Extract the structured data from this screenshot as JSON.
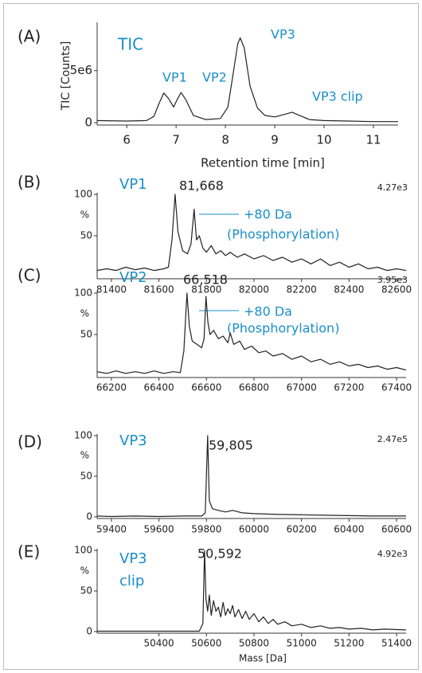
{
  "chart_data": [
    {
      "type": "line",
      "panel": "(A)",
      "title_lines": [
        "TIC"
      ],
      "ylabel": "TIC [Counts]",
      "xlabel": "Retention time [min]",
      "annotations": [
        "VP1",
        "VP2",
        "VP3",
        "VP3 clip"
      ],
      "color": "#222222",
      "x": [
        5.4,
        6.0,
        6.4,
        6.55,
        6.65,
        6.75,
        6.85,
        6.95,
        7.02,
        7.1,
        7.2,
        7.35,
        7.6,
        7.9,
        8.05,
        8.15,
        8.25,
        8.3,
        8.38,
        8.5,
        8.65,
        8.8,
        9.0,
        9.2,
        9.35,
        9.5,
        9.7,
        10.0,
        10.5,
        11.0,
        11.5
      ],
      "values": [
        200000,
        150000,
        200000,
        600000,
        1800000,
        2850000,
        2300000,
        1500000,
        2200000,
        2900000,
        2200000,
        700000,
        300000,
        400000,
        1500000,
        4500000,
        7600000,
        8150000,
        7200000,
        3500000,
        1400000,
        700000,
        550000,
        800000,
        1000000,
        700000,
        300000,
        200000,
        150000,
        100000,
        100000
      ],
      "xlim": [
        5.4,
        11.5
      ],
      "ylim": [
        -230000,
        9500000
      ],
      "xticks": [
        6,
        7,
        8,
        9,
        10,
        11
      ],
      "yticks": [
        0,
        {
          "value": 5000000,
          "label": "5e6"
        }
      ]
    },
    {
      "type": "line",
      "panel": "(B)",
      "title_lines": [
        "VP1"
      ],
      "y_unit": "%",
      "intensity_label": "4.27e3",
      "annotations": [
        "81,668",
        "+80 Da",
        "(Phosphorylation)"
      ],
      "color": "#222222",
      "x": [
        81340,
        81380,
        81420,
        81460,
        81500,
        81540,
        81580,
        81620,
        81640,
        81655,
        81668,
        81680,
        81700,
        81720,
        81735,
        81748,
        81758,
        81770,
        81785,
        81800,
        81820,
        81840,
        81860,
        81880,
        81900,
        81930,
        81960,
        82000,
        82040,
        82080,
        82120,
        82160,
        82200,
        82240,
        82280,
        82320,
        82360,
        82400,
        82440,
        82480,
        82520,
        82560,
        82600,
        82640
      ],
      "values": [
        8,
        10,
        8,
        12,
        9,
        11,
        8,
        10,
        12,
        45,
        100,
        55,
        32,
        28,
        40,
        82,
        45,
        50,
        35,
        30,
        38,
        28,
        32,
        26,
        30,
        24,
        28,
        22,
        26,
        20,
        24,
        18,
        22,
        16,
        22,
        14,
        18,
        12,
        16,
        10,
        12,
        8,
        10,
        8
      ],
      "xlim": [
        81340,
        82640
      ],
      "ylim": [
        -2,
        100
      ],
      "xticks": [
        81400,
        81600,
        81800,
        82000,
        82200,
        82400,
        82600
      ],
      "yticks": [
        50,
        100
      ]
    },
    {
      "type": "line",
      "panel": "(C)",
      "title_lines": [
        "VP2"
      ],
      "y_unit": "%",
      "intensity_label": "3.95e3",
      "annotations": [
        "66,518",
        "+80 Da",
        "(Phosphorylation)"
      ],
      "color": "#222222",
      "x": [
        66140,
        66180,
        66220,
        66260,
        66300,
        66340,
        66380,
        66420,
        66460,
        66490,
        66505,
        66518,
        66528,
        66540,
        66560,
        66580,
        66590,
        66598,
        66606,
        66615,
        66630,
        66650,
        66670,
        66690,
        66700,
        66715,
        66740,
        66760,
        66790,
        66820,
        66850,
        66880,
        66920,
        66960,
        67000,
        67040,
        67080,
        67120,
        67160,
        67200,
        67240,
        67280,
        67320,
        67360,
        67400,
        67440
      ],
      "values": [
        5,
        3,
        6,
        3,
        5,
        3,
        6,
        3,
        5,
        4,
        30,
        100,
        60,
        42,
        38,
        34,
        45,
        96,
        65,
        50,
        55,
        45,
        48,
        40,
        52,
        38,
        42,
        32,
        36,
        28,
        30,
        24,
        27,
        20,
        24,
        17,
        20,
        14,
        17,
        12,
        14,
        10,
        12,
        8,
        10,
        7
      ],
      "xlim": [
        66140,
        67440
      ],
      "ylim": [
        -2,
        100
      ],
      "xticks": [
        66200,
        66400,
        66600,
        66800,
        67000,
        67200,
        67400
      ],
      "yticks": [
        50,
        100
      ]
    },
    {
      "type": "line",
      "panel": "(D)",
      "title_lines": [
        "VP3"
      ],
      "y_unit": "%",
      "intensity_label": "2.47e5",
      "annotations": [
        "59,805"
      ],
      "color": "#222222",
      "x": [
        59340,
        59400,
        59500,
        59600,
        59700,
        59780,
        59795,
        59805,
        59812,
        59825,
        59850,
        59880,
        59910,
        59950,
        60000,
        60100,
        60200,
        60300,
        60400,
        60500,
        60640
      ],
      "values": [
        1,
        0.5,
        1,
        0.5,
        1,
        1,
        5,
        100,
        20,
        10,
        8,
        6,
        8,
        5,
        4,
        3,
        2.5,
        2,
        1.5,
        1,
        1
      ],
      "xlim": [
        59340,
        60640
      ],
      "ylim": [
        -2,
        100
      ],
      "xticks": [
        59400,
        59600,
        59800,
        60000,
        60200,
        60400,
        60600
      ],
      "yticks": [
        0,
        50,
        100
      ]
    },
    {
      "type": "line",
      "panel": "(E)",
      "title_lines": [
        "VP3",
        "clip"
      ],
      "y_unit": "%",
      "intensity_label": "4.92e3",
      "xlabel": "Mass [Da]",
      "annotations": [
        "50,592"
      ],
      "color": "#222222",
      "x": [
        50140,
        50300,
        50450,
        50570,
        50585,
        50592,
        50598,
        50605,
        50612,
        50620,
        50630,
        50640,
        50650,
        50660,
        50670,
        50680,
        50690,
        50700,
        50710,
        50720,
        50735,
        50750,
        50765,
        50780,
        50800,
        50820,
        50840,
        50860,
        50880,
        50900,
        50930,
        50960,
        51000,
        51040,
        51080,
        51120,
        51160,
        51200,
        51250,
        51300,
        51350,
        51440
      ],
      "values": [
        0.5,
        0.5,
        0.5,
        0.5,
        10,
        100,
        40,
        25,
        45,
        20,
        38,
        25,
        30,
        18,
        36,
        20,
        28,
        22,
        32,
        18,
        27,
        16,
        25,
        15,
        22,
        12,
        18,
        10,
        15,
        9,
        12,
        7,
        9,
        5,
        7,
        4,
        5,
        3,
        4,
        2,
        3,
        2
      ],
      "xlim": [
        50140,
        51440
      ],
      "ylim": [
        -2,
        100
      ],
      "xticks": [
        50400,
        50600,
        50800,
        51000,
        51200,
        51400
      ],
      "yticks": [
        0,
        50,
        100
      ]
    }
  ]
}
